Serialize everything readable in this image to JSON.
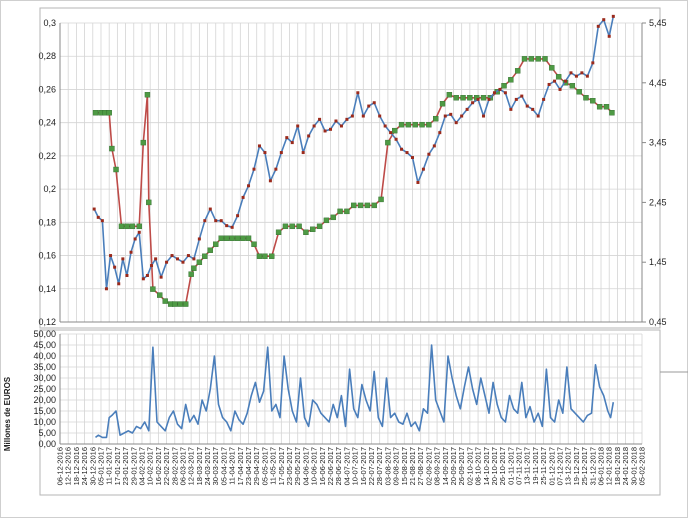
{
  "chart_data": [
    {
      "type": "line",
      "title": "",
      "xlabel": "",
      "ylabel": "",
      "ylim_left": [
        0.12,
        0.3
      ],
      "ylim_right": [
        0.45,
        5.45
      ],
      "left_ticks": [
        "0,12",
        "0,14",
        "0,16",
        "0,18",
        "0,2",
        "0,22",
        "0,24",
        "0,26",
        "0,28",
        "0,3"
      ],
      "right_ticks": [
        "0,45",
        "1,45",
        "2,45",
        "3,45",
        "4,45",
        "5,45"
      ],
      "grid": true,
      "legend": "none",
      "colors": {
        "blue": "#4a7ebb",
        "red": "#be4b48",
        "green": "#4e9a44",
        "red_marker": "#9b2a1c"
      },
      "series": [
        {
          "axis": "left",
          "x": [
            "2016-12-31",
            "2017-01-03",
            "2017-01-06",
            "2017-01-09",
            "2017-01-12",
            "2017-01-15",
            "2017-01-18",
            "2017-01-21",
            "2017-01-24",
            "2017-01-27",
            "2017-01-30",
            "2017-02-02",
            "2017-02-05",
            "2017-02-08",
            "2017-02-11",
            "2017-02-14",
            "2017-02-18",
            "2017-02-22",
            "2017-02-26",
            "2017-03-02",
            "2017-03-06",
            "2017-03-10",
            "2017-03-14",
            "2017-03-18",
            "2017-03-22",
            "2017-03-26",
            "2017-03-30",
            "2017-04-03",
            "2017-04-07",
            "2017-04-11",
            "2017-04-15",
            "2017-04-19",
            "2017-04-23",
            "2017-04-27",
            "2017-05-01",
            "2017-05-05",
            "2017-05-09",
            "2017-05-13",
            "2017-05-17",
            "2017-05-21",
            "2017-05-25",
            "2017-05-29",
            "2017-06-02",
            "2017-06-06",
            "2017-06-10",
            "2017-06-14",
            "2017-06-18",
            "2017-06-22",
            "2017-06-26",
            "2017-06-30",
            "2017-07-04",
            "2017-07-08",
            "2017-07-12",
            "2017-07-16",
            "2017-07-20",
            "2017-07-24",
            "2017-07-28",
            "2017-08-01",
            "2017-08-05",
            "2017-08-09",
            "2017-08-13",
            "2017-08-17",
            "2017-08-21",
            "2017-08-25",
            "2017-08-29",
            "2017-09-02",
            "2017-09-06",
            "2017-09-10",
            "2017-09-14",
            "2017-09-18",
            "2017-09-22",
            "2017-09-26",
            "2017-09-30",
            "2017-10-04",
            "2017-10-08",
            "2017-10-12",
            "2017-10-16",
            "2017-10-20",
            "2017-10-24",
            "2017-10-28",
            "2017-11-01",
            "2017-11-05",
            "2017-11-09",
            "2017-11-13",
            "2017-11-17",
            "2017-11-21",
            "2017-11-25",
            "2017-11-29",
            "2017-12-03",
            "2017-12-07",
            "2017-12-11",
            "2017-12-15",
            "2017-12-19",
            "2017-12-23",
            "2017-12-27",
            "2017-12-31",
            "2018-01-04",
            "2018-01-08",
            "2018-01-12",
            "2018-01-15"
          ],
          "y": [
            0.188,
            0.183,
            0.181,
            0.14,
            0.16,
            0.153,
            0.143,
            0.158,
            0.148,
            0.162,
            0.17,
            0.174,
            0.146,
            0.148,
            0.154,
            0.158,
            0.147,
            0.156,
            0.16,
            0.158,
            0.156,
            0.16,
            0.158,
            0.17,
            0.181,
            0.188,
            0.181,
            0.181,
            0.178,
            0.177,
            0.184,
            0.195,
            0.202,
            0.212,
            0.226,
            0.222,
            0.205,
            0.212,
            0.222,
            0.231,
            0.228,
            0.238,
            0.222,
            0.232,
            0.238,
            0.242,
            0.235,
            0.236,
            0.241,
            0.238,
            0.242,
            0.244,
            0.258,
            0.244,
            0.25,
            0.252,
            0.244,
            0.238,
            0.234,
            0.23,
            0.224,
            0.222,
            0.219,
            0.204,
            0.212,
            0.221,
            0.226,
            0.234,
            0.244,
            0.245,
            0.24,
            0.244,
            0.248,
            0.252,
            0.254,
            0.244,
            0.254,
            0.258,
            0.26,
            0.258,
            0.248,
            0.254,
            0.256,
            0.25,
            0.248,
            0.244,
            0.254,
            0.263,
            0.265,
            0.26,
            0.265,
            0.27,
            0.268,
            0.27,
            0.268,
            0.276,
            0.298,
            0.302,
            0.292,
            0.304
          ]
        },
        {
          "axis": "right",
          "x": [
            "2017-01-01",
            "2017-01-05",
            "2017-01-08",
            "2017-01-11",
            "2017-01-13",
            "2017-01-16",
            "2017-01-20",
            "2017-01-24",
            "2017-01-28",
            "2017-02-02",
            "2017-02-05",
            "2017-02-08",
            "2017-02-09",
            "2017-02-12",
            "2017-02-17",
            "2017-02-21",
            "2017-02-25",
            "2017-02-28",
            "2017-03-04",
            "2017-03-08",
            "2017-03-12",
            "2017-03-14",
            "2017-03-18",
            "2017-03-22",
            "2017-03-26",
            "2017-03-30",
            "2017-04-03",
            "2017-04-07",
            "2017-04-11",
            "2017-04-15",
            "2017-04-19",
            "2017-04-23",
            "2017-04-27",
            "2017-05-01",
            "2017-05-05",
            "2017-05-10",
            "2017-05-15",
            "2017-05-20",
            "2017-05-25",
            "2017-05-30",
            "2017-06-04",
            "2017-06-09",
            "2017-06-14",
            "2017-06-19",
            "2017-06-24",
            "2017-06-29",
            "2017-07-04",
            "2017-07-09",
            "2017-07-14",
            "2017-07-19",
            "2017-07-24",
            "2017-07-29",
            "2017-08-03",
            "2017-08-08",
            "2017-08-13",
            "2017-08-18",
            "2017-08-23",
            "2017-08-28",
            "2017-09-02",
            "2017-09-07",
            "2017-09-12",
            "2017-09-17",
            "2017-09-22",
            "2017-09-27",
            "2017-10-02",
            "2017-10-07",
            "2017-10-12",
            "2017-10-17",
            "2017-10-22",
            "2017-10-27",
            "2017-11-01",
            "2017-11-06",
            "2017-11-11",
            "2017-11-16",
            "2017-11-21",
            "2017-11-26",
            "2017-12-01",
            "2017-12-06",
            "2017-12-11",
            "2017-12-16",
            "2017-12-21",
            "2017-12-26",
            "2017-12-31",
            "2018-01-05",
            "2018-01-10",
            "2018-01-14"
          ],
          "y": [
            3.95,
            3.95,
            3.95,
            3.95,
            3.35,
            3.0,
            2.05,
            2.05,
            2.05,
            2.05,
            3.45,
            4.25,
            2.45,
            1.0,
            0.9,
            0.8,
            0.75,
            0.75,
            0.75,
            0.75,
            1.25,
            1.35,
            1.45,
            1.55,
            1.65,
            1.75,
            1.85,
            1.85,
            1.85,
            1.85,
            1.85,
            1.85,
            1.75,
            1.55,
            1.55,
            1.55,
            1.95,
            2.05,
            2.05,
            2.05,
            1.95,
            2.0,
            2.05,
            2.15,
            2.2,
            2.3,
            2.3,
            2.4,
            2.4,
            2.4,
            2.4,
            2.5,
            3.45,
            3.65,
            3.75,
            3.75,
            3.75,
            3.75,
            3.75,
            3.85,
            4.1,
            4.25,
            4.2,
            4.2,
            4.2,
            4.2,
            4.2,
            4.2,
            4.3,
            4.4,
            4.5,
            4.65,
            4.85,
            4.85,
            4.85,
            4.85,
            4.7,
            4.55,
            4.45,
            4.4,
            4.3,
            4.2,
            4.15,
            4.05,
            4.05,
            3.95
          ]
        }
      ]
    },
    {
      "type": "line",
      "title": "",
      "xlabel": "",
      "ylabel": "Millones de EUROS",
      "ylim": [
        0,
        50
      ],
      "y_ticks": [
        "0,00",
        "5,00",
        "10,00",
        "15,00",
        "20,00",
        "25,00",
        "30,00",
        "35,00",
        "40,00",
        "45,00",
        "50,00"
      ],
      "x_ticks": [
        "06-12-2016",
        "12-12-2016",
        "18-12-2016",
        "24-12-2016",
        "30-12-2016",
        "05-01-2017",
        "11-01-2017",
        "17-01-2017",
        "23-01-2017",
        "29-01-2017",
        "04-02-2017",
        "10-02-2017",
        "16-02-2017",
        "22-02-2017",
        "28-02-2017",
        "06-03-2017",
        "12-03-2017",
        "18-03-2017",
        "24-03-2017",
        "30-03-2017",
        "05-04-2017",
        "11-04-2017",
        "17-04-2017",
        "23-04-2017",
        "29-04-2017",
        "05-05-2017",
        "11-05-2017",
        "17-05-2017",
        "23-05-2017",
        "29-05-2017",
        "04-06-2017",
        "10-06-2017",
        "16-06-2017",
        "22-06-2017",
        "28-06-2017",
        "04-07-2017",
        "10-07-2017",
        "16-07-2017",
        "22-07-2017",
        "28-07-2017",
        "03-08-2017",
        "09-08-2017",
        "15-08-2017",
        "21-08-2017",
        "27-08-2017",
        "02-09-2017",
        "08-09-2017",
        "14-09-2017",
        "20-09-2017",
        "26-09-2017",
        "02-10-2017",
        "08-10-2017",
        "14-10-2017",
        "20-10-2017",
        "26-10-2017",
        "01-11-2017",
        "07-11-2017",
        "13-11-2017",
        "19-11-2017",
        "25-11-2017",
        "01-12-2017",
        "07-12-2017",
        "13-12-2017",
        "19-12-2017",
        "25-12-2017",
        "31-12-2017",
        "06-01-2018",
        "12-01-2018",
        "18-01-2018",
        "24-01-2018",
        "30-01-2018",
        "05-02-2018"
      ],
      "grid": true,
      "legend": "none",
      "series": [
        {
          "x": [
            "2017-01-01",
            "2017-01-03",
            "2017-01-06",
            "2017-01-09",
            "2017-01-11",
            "2017-01-13",
            "2017-01-16",
            "2017-01-19",
            "2017-01-22",
            "2017-01-25",
            "2017-01-28",
            "2017-01-31",
            "2017-02-03",
            "2017-02-06",
            "2017-02-09",
            "2017-02-12",
            "2017-02-15",
            "2017-02-18",
            "2017-02-21",
            "2017-02-24",
            "2017-02-27",
            "2017-03-02",
            "2017-03-05",
            "2017-03-08",
            "2017-03-11",
            "2017-03-14",
            "2017-03-17",
            "2017-03-20",
            "2017-03-23",
            "2017-03-26",
            "2017-03-29",
            "2017-04-01",
            "2017-04-04",
            "2017-04-07",
            "2017-04-10",
            "2017-04-13",
            "2017-04-16",
            "2017-04-19",
            "2017-04-22",
            "2017-04-25",
            "2017-04-28",
            "2017-05-01",
            "2017-05-04",
            "2017-05-07",
            "2017-05-10",
            "2017-05-13",
            "2017-05-16",
            "2017-05-19",
            "2017-05-22",
            "2017-05-25",
            "2017-05-28",
            "2017-05-31",
            "2017-06-03",
            "2017-06-06",
            "2017-06-09",
            "2017-06-12",
            "2017-06-15",
            "2017-06-18",
            "2017-06-21",
            "2017-06-24",
            "2017-06-27",
            "2017-06-30",
            "2017-07-03",
            "2017-07-06",
            "2017-07-09",
            "2017-07-12",
            "2017-07-15",
            "2017-07-18",
            "2017-07-21",
            "2017-07-24",
            "2017-07-27",
            "2017-07-30",
            "2017-08-02",
            "2017-08-05",
            "2017-08-08",
            "2017-08-11",
            "2017-08-14",
            "2017-08-17",
            "2017-08-20",
            "2017-08-23",
            "2017-08-26",
            "2017-08-29",
            "2017-09-01",
            "2017-09-04",
            "2017-09-07",
            "2017-09-10",
            "2017-09-13",
            "2017-09-16",
            "2017-09-19",
            "2017-09-22",
            "2017-09-25",
            "2017-09-28",
            "2017-10-01",
            "2017-10-04",
            "2017-10-07",
            "2017-10-10",
            "2017-10-13",
            "2017-10-16",
            "2017-10-19",
            "2017-10-22",
            "2017-10-25",
            "2017-10-28",
            "2017-10-31",
            "2017-11-03",
            "2017-11-06",
            "2017-11-09",
            "2017-11-12",
            "2017-11-15",
            "2017-11-18",
            "2017-11-21",
            "2017-11-24",
            "2017-11-27",
            "2017-11-30",
            "2017-12-03",
            "2017-12-06",
            "2017-12-09",
            "2017-12-12",
            "2017-12-15",
            "2017-12-18",
            "2017-12-21",
            "2017-12-24",
            "2017-12-27",
            "2017-12-30",
            "2018-01-02",
            "2018-01-05",
            "2018-01-08",
            "2018-01-11",
            "2018-01-13",
            "2018-01-15"
          ],
          "y": [
            3,
            4,
            3,
            3,
            12,
            13,
            15,
            4,
            5,
            6,
            5,
            8,
            7,
            10,
            6,
            44,
            10,
            8,
            6,
            12,
            15,
            9,
            7,
            18,
            10,
            13,
            9,
            20,
            15,
            25,
            40,
            18,
            12,
            10,
            6,
            15,
            11,
            9,
            14,
            22,
            28,
            19,
            24,
            44,
            15,
            18,
            12,
            40,
            25,
            15,
            10,
            30,
            12,
            8,
            20,
            18,
            14,
            12,
            10,
            18,
            12,
            22,
            8,
            34,
            16,
            12,
            27,
            20,
            15,
            33,
            12,
            8,
            30,
            12,
            14,
            10,
            9,
            14,
            8,
            10,
            6,
            16,
            14,
            45,
            20,
            15,
            10,
            40,
            30,
            22,
            16,
            26,
            35,
            25,
            18,
            30,
            22,
            14,
            28,
            18,
            12,
            10,
            22,
            16,
            14,
            28,
            12,
            17,
            10,
            14,
            8,
            34,
            12,
            10,
            20,
            14,
            35,
            16,
            14,
            12,
            10,
            13,
            14,
            36,
            26,
            22,
            15,
            12,
            19
          ]
        }
      ]
    }
  ]
}
